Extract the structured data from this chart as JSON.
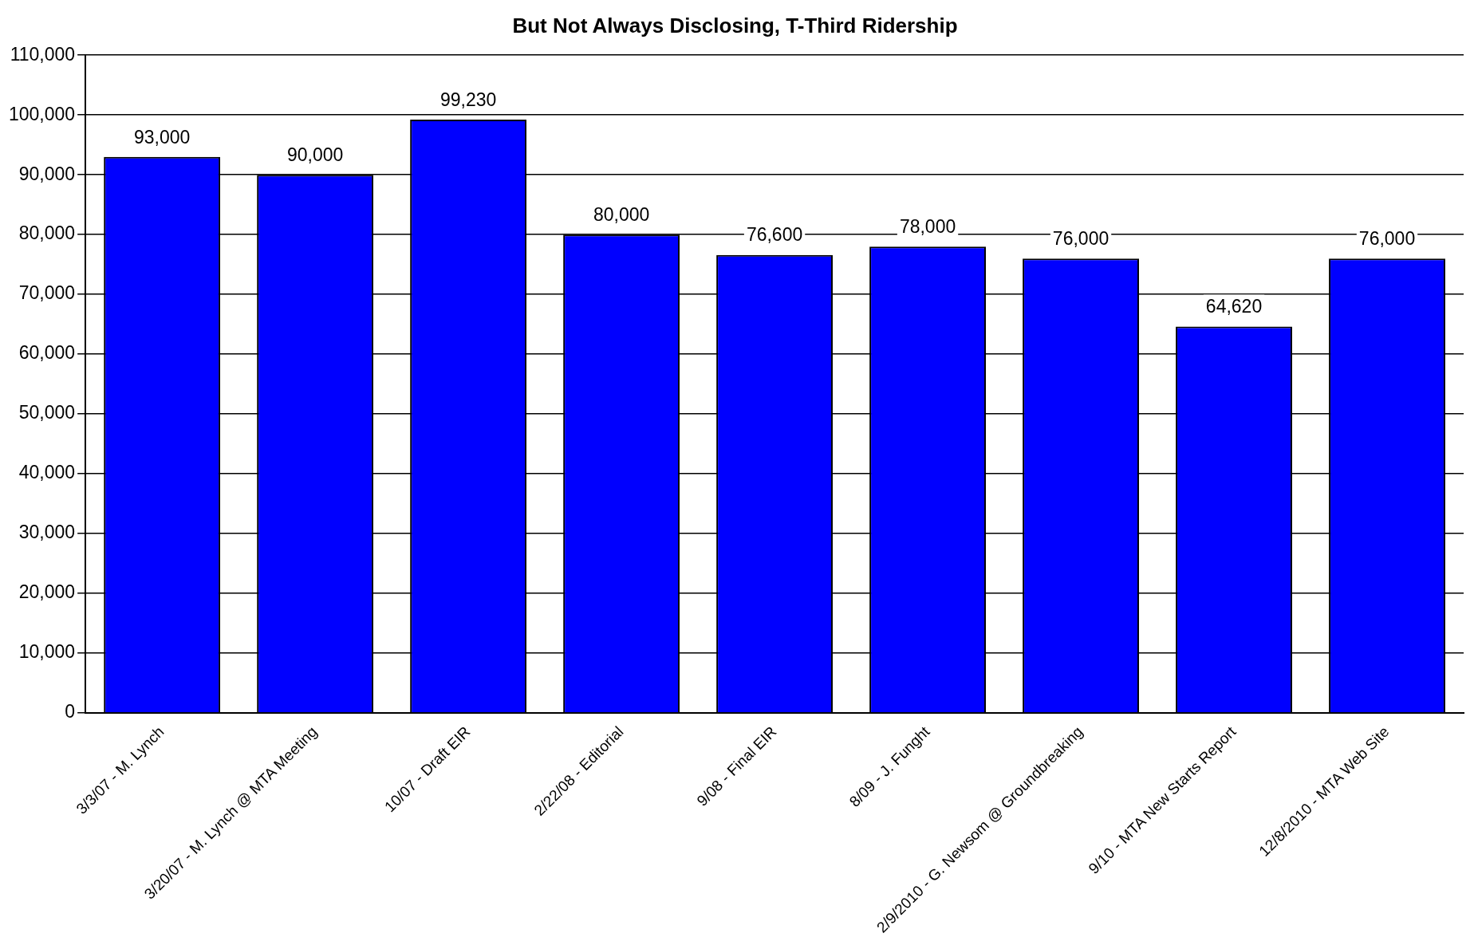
{
  "chart_data": {
    "type": "bar",
    "title": "But Not Always Disclosing, T-Third Ridership",
    "categories": [
      "3/3/07 - M. Lynch",
      "3/20/07 - M. Lynch @ MTA Meeting",
      "10/07 - Draft EIR",
      "2/22/08 - Editorial",
      "9/08 - Final EIR",
      "8/09 - J. Funght",
      "2/9/2010 - G. Newsom @ Groundbreaking",
      "9/10 - MTA New Starts Report",
      "12/8/2010 - MTA Web Site"
    ],
    "values": [
      93000,
      90000,
      99230,
      80000,
      76600,
      78000,
      76000,
      64620,
      76000
    ],
    "value_labels": [
      "93,000",
      "90,000",
      "99,230",
      "80,000",
      "76,600",
      "78,000",
      "76,000",
      "64,620",
      "76,000"
    ],
    "color": "#0000ff",
    "ylim": [
      0,
      110000
    ],
    "yticks": [
      {
        "value": 0,
        "label": "0"
      },
      {
        "value": 10000,
        "label": "10,000"
      },
      {
        "value": 20000,
        "label": "20,000"
      },
      {
        "value": 30000,
        "label": "30,000"
      },
      {
        "value": 40000,
        "label": "40,000"
      },
      {
        "value": 50000,
        "label": "50,000"
      },
      {
        "value": 60000,
        "label": "60,000"
      },
      {
        "value": 70000,
        "label": "70,000"
      },
      {
        "value": 80000,
        "label": "80,000"
      },
      {
        "value": 90000,
        "label": "90,000"
      },
      {
        "value": 100000,
        "label": "100,000"
      },
      {
        "value": 110000,
        "label": "110,000"
      }
    ],
    "grid": "y"
  }
}
